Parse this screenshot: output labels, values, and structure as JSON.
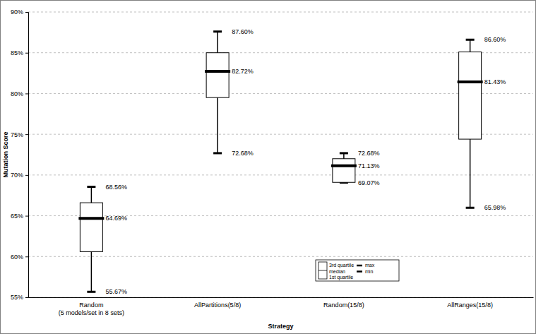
{
  "chart_data": {
    "type": "box",
    "x_label": "Strategy",
    "y_label": "Mutation Score",
    "categories": [
      "Random\n(5 models/set in 8 sets)",
      "AllPartitions(5/8)",
      "Random(15/8)",
      "AllRanges(15/8)"
    ],
    "min": [
      55.67,
      72.68,
      69.07,
      65.98
    ],
    "q1": [
      60.6,
      79.5,
      69.1,
      74.4
    ],
    "median": [
      64.69,
      82.72,
      71.13,
      81.43
    ],
    "q3": [
      66.6,
      85.0,
      72.0,
      85.1
    ],
    "max": [
      68.56,
      87.6,
      72.68,
      86.6
    ],
    "min_labels": [
      "55.67%",
      "72.68%",
      "69.07%",
      "65.98%"
    ],
    "median_labels": [
      "64.69%",
      "82.72%",
      "71.13%",
      "81.43%"
    ],
    "max_labels": [
      "68.56%",
      "87.60%",
      "72.68%",
      "86.60%"
    ],
    "legend_labels": [
      "3rd quartile",
      "median",
      "1st quartile",
      "max",
      "min"
    ],
    "legend": "bottom",
    "ylim": [
      55,
      90
    ],
    "yticks": [
      {
        "value": 55,
        "label": "55%"
      },
      {
        "value": 60,
        "label": "60%"
      },
      {
        "value": 65,
        "label": "65%"
      },
      {
        "value": 70,
        "label": "70%"
      },
      {
        "value": 75,
        "label": "75%"
      },
      {
        "value": 80,
        "label": "80%"
      },
      {
        "value": 85,
        "label": "85%"
      },
      {
        "value": 90,
        "label": "90%"
      }
    ],
    "grid": true
  }
}
